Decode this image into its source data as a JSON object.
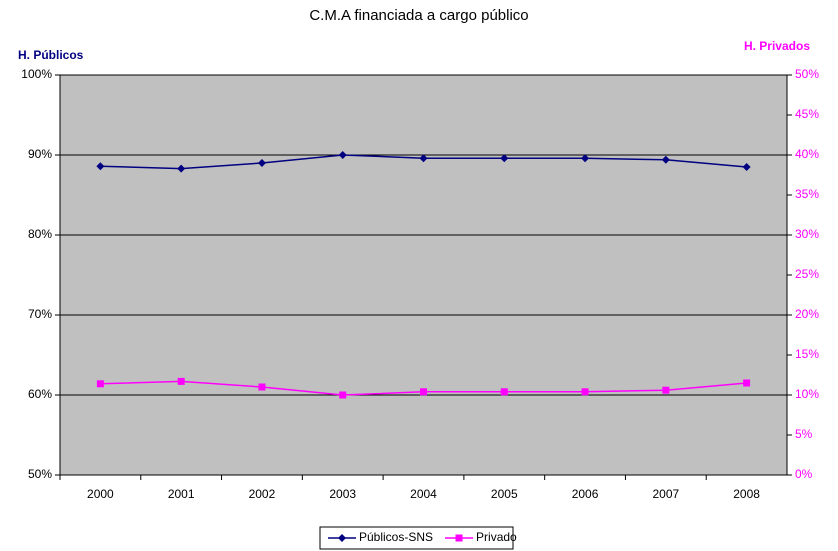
{
  "chart_data": {
    "type": "line",
    "title": "C.M.A financiada a cargo público",
    "y_label": "H. Públicos",
    "y2_label": "H. Privados",
    "categories": [
      "2000",
      "2001",
      "2002",
      "2003",
      "2004",
      "2005",
      "2006",
      "2007",
      "2008"
    ],
    "series": [
      {
        "name": "Públicos-SNS",
        "color": "#000080",
        "marker": "diamond",
        "values": [
          88.6,
          88.3,
          89.0,
          90.0,
          89.6,
          89.6,
          89.6,
          89.4,
          88.5
        ]
      },
      {
        "name": "Privado",
        "color": "#ff00ff",
        "marker": "square",
        "axis": "y2",
        "values": [
          11.4,
          11.7,
          11.0,
          10.0,
          10.4,
          10.4,
          10.4,
          10.6,
          11.5
        ]
      }
    ],
    "ylim": [
      50,
      100
    ],
    "yticks": [
      {
        "value": 50,
        "label": "50%"
      },
      {
        "value": 60,
        "label": "60%"
      },
      {
        "value": 70,
        "label": "70%"
      },
      {
        "value": 80,
        "label": "80%"
      },
      {
        "value": 90,
        "label": "90%"
      },
      {
        "value": 100,
        "label": "100%"
      }
    ],
    "y2lim": [
      0,
      50
    ],
    "y2ticks": [
      {
        "value": 0,
        "label": "0%"
      },
      {
        "value": 5,
        "label": "5%"
      },
      {
        "value": 10,
        "label": "10%"
      },
      {
        "value": 15,
        "label": "15%"
      },
      {
        "value": 20,
        "label": "20%"
      },
      {
        "value": 25,
        "label": "25%"
      },
      {
        "value": 30,
        "label": "30%"
      },
      {
        "value": 35,
        "label": "35%"
      },
      {
        "value": 40,
        "label": "40%"
      },
      {
        "value": 45,
        "label": "45%"
      },
      {
        "value": 50,
        "label": "50%"
      }
    ],
    "grid": true,
    "plot_background": "#c0c0c0",
    "legend": "bottom"
  }
}
